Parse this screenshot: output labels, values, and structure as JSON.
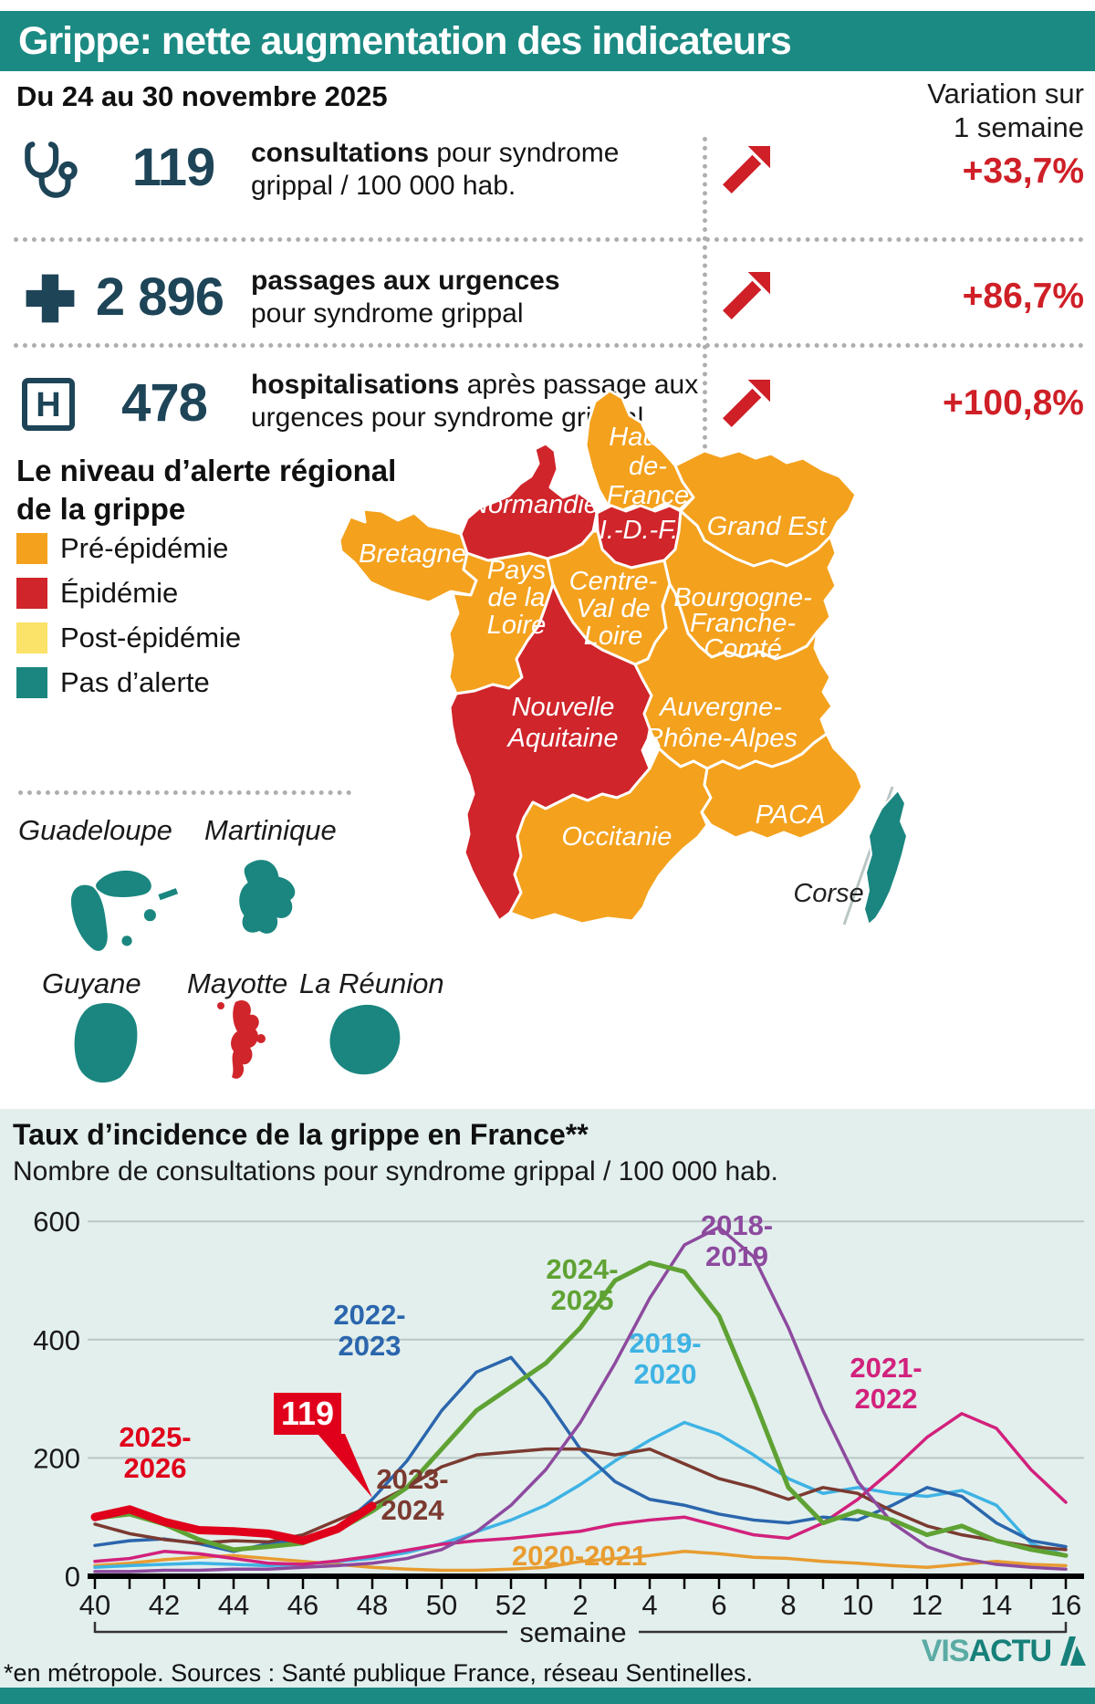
{
  "title": "Grippe: nette augmentation des indicateurs",
  "period": "Du 24 au 30 novembre 2025",
  "variation_header": "Variation sur\n1 semaine",
  "stats": [
    {
      "icon": "stethoscope-icon",
      "value": "119",
      "bold": "consultations",
      "rest": " pour syndrome grippal / 100 000 hab.",
      "variation": "+33,7%"
    },
    {
      "icon": "medical-cross-icon",
      "value": "2 896",
      "bold": "passages aux urgences",
      "rest": " pour syndrome grippal",
      "variation": "+86,7%"
    },
    {
      "icon": "hospital-icon",
      "value": "478",
      "bold": "hospitalisations",
      "rest": " après passage aux urgences pour syndrome grippal",
      "variation": "+100,8%"
    }
  ],
  "map": {
    "heading": "Le niveau d’alerte régional\nde la grippe",
    "status_colors": {
      "pre": "#f4a11d",
      "epidemie": "#d0252b",
      "post": "#fbe268",
      "none": "#1a867f"
    },
    "legend": [
      {
        "label": "Pré-épidémie",
        "status": "pre",
        "color": "#f4a11d"
      },
      {
        "label": "Épidémie",
        "status": "epidemie",
        "color": "#d0252b"
      },
      {
        "label": "Post-épidémie",
        "status": "post",
        "color": "#fbe268"
      },
      {
        "label": "Pas d’alerte",
        "status": "none",
        "color": "#1a867f"
      }
    ],
    "regions": [
      {
        "id": "hauts-de-france",
        "label": "Hauts-\nde-\nFrance",
        "status": "pre"
      },
      {
        "id": "normandie",
        "label": "Normandie",
        "status": "epidemie"
      },
      {
        "id": "ile-de-france",
        "label": "I.-D.-F.",
        "status": "epidemie"
      },
      {
        "id": "grand-est",
        "label": "Grand Est",
        "status": "pre"
      },
      {
        "id": "bretagne",
        "label": "Bretagne",
        "status": "pre"
      },
      {
        "id": "pays-de-la-loire",
        "label": "Pays\nde la\nLoire",
        "status": "pre"
      },
      {
        "id": "centre-val-de-loire",
        "label": "Centre-\nVal de\nLoire",
        "status": "pre"
      },
      {
        "id": "bourgogne-franche-comte",
        "label": "Bourgogne-\nFranche-\nComté",
        "status": "pre"
      },
      {
        "id": "nouvelle-aquitaine",
        "label": "Nouvelle\nAquitaine",
        "status": "epidemie"
      },
      {
        "id": "auvergne-rhone-alpes",
        "label": "Auvergne-\nRhône-Alpes",
        "status": "pre"
      },
      {
        "id": "occitanie",
        "label": "Occitanie",
        "status": "pre"
      },
      {
        "id": "paca",
        "label": "PACA",
        "status": "pre"
      },
      {
        "id": "corse",
        "label": "Corse",
        "status": "none",
        "label_dark": true
      }
    ],
    "overseas": [
      {
        "id": "guadeloupe",
        "name": "Guadeloupe",
        "status": "none"
      },
      {
        "id": "martinique",
        "name": "Martinique",
        "status": "none"
      },
      {
        "id": "guyane",
        "name": "Guyane",
        "status": "none"
      },
      {
        "id": "mayotte",
        "name": "Mayotte",
        "status": "epidemie"
      },
      {
        "id": "reunion",
        "name": "La Réunion",
        "status": "none"
      }
    ]
  },
  "chart_data": {
    "type": "line",
    "title": "Taux d’incidence de la grippe en France**",
    "subtitle": "Nombre de consultations pour syndrome grippal / 100 000 hab.",
    "xlabel": "semaine",
    "ylim": [
      0,
      600
    ],
    "y_ticks": [
      600,
      400,
      200,
      0
    ],
    "x_tick_labels": [
      "40",
      "42",
      "44",
      "46",
      "48",
      "50",
      "52",
      "2",
      "4",
      "6",
      "8",
      "10",
      "12",
      "14",
      "16"
    ],
    "weeks": [
      "40",
      "41",
      "42",
      "43",
      "44",
      "45",
      "46",
      "47",
      "48",
      "49",
      "50",
      "51",
      "52",
      "1",
      "2",
      "3",
      "4",
      "5",
      "6",
      "7",
      "8",
      "9",
      "10",
      "11",
      "12",
      "13",
      "14",
      "15",
      "16"
    ],
    "callout": {
      "text": "119",
      "week": "48"
    },
    "series": [
      {
        "name": "2020-2021",
        "label": "2020-2021",
        "color": "#e89c30",
        "width": 3.5,
        "values": [
          18,
          22,
          28,
          32,
          35,
          30,
          25,
          20,
          15,
          12,
          10,
          10,
          12,
          15,
          25,
          30,
          35,
          42,
          38,
          32,
          30,
          25,
          22,
          18,
          15,
          20,
          25,
          20,
          18
        ]
      },
      {
        "name": "2019-2020",
        "label": "2019-\n2020",
        "color": "#3eb3e4",
        "width": 3.5,
        "values": [
          15,
          18,
          20,
          22,
          20,
          18,
          20,
          25,
          30,
          40,
          55,
          75,
          95,
          120,
          155,
          195,
          230,
          260,
          240,
          205,
          165,
          140,
          150,
          140,
          135,
          145,
          120,
          55,
          35
        ]
      },
      {
        "name": "2021-2022",
        "label": "2021-\n2022",
        "color": "#d2217c",
        "width": 3.5,
        "values": [
          25,
          30,
          42,
          38,
          30,
          22,
          20,
          26,
          34,
          44,
          54,
          60,
          64,
          70,
          76,
          88,
          95,
          100,
          85,
          70,
          64,
          90,
          130,
          180,
          235,
          275,
          250,
          180,
          125
        ]
      },
      {
        "name": "2022-2023",
        "label": "2022-\n2023",
        "color": "#2b66ad",
        "width": 3.5,
        "values": [
          52,
          60,
          63,
          55,
          42,
          55,
          62,
          80,
          130,
          195,
          280,
          345,
          370,
          300,
          215,
          160,
          130,
          120,
          105,
          95,
          90,
          100,
          95,
          120,
          150,
          135,
          90,
          60,
          50
        ]
      },
      {
        "name": "2023-2024",
        "label": "2023-\n2024",
        "color": "#7b3a30",
        "width": 3.5,
        "values": [
          88,
          72,
          62,
          56,
          60,
          58,
          70,
          95,
          120,
          150,
          185,
          205,
          210,
          215,
          215,
          205,
          215,
          190,
          165,
          150,
          130,
          150,
          140,
          110,
          85,
          70,
          60,
          50,
          45
        ]
      },
      {
        "name": "2018-2019",
        "label": "2018-\n2019",
        "color": "#8d4a9e",
        "width": 3.5,
        "values": [
          8,
          8,
          10,
          10,
          12,
          12,
          15,
          18,
          22,
          30,
          45,
          75,
          120,
          180,
          260,
          360,
          470,
          560,
          590,
          540,
          420,
          280,
          160,
          90,
          50,
          30,
          20,
          15,
          12
        ]
      },
      {
        "name": "2024-2025",
        "label": "2024-\n2025",
        "color": "#5fa233",
        "width": 5,
        "values": [
          98,
          105,
          88,
          62,
          45,
          50,
          56,
          78,
          110,
          150,
          215,
          280,
          320,
          360,
          420,
          500,
          530,
          515,
          440,
          300,
          150,
          90,
          110,
          95,
          70,
          85,
          60,
          45,
          35
        ]
      },
      {
        "name": "2025-2026",
        "label": "2025-\n2026",
        "color": "#e0001b",
        "width": 9,
        "values": [
          100,
          113,
          92,
          78,
          76,
          72,
          60,
          80,
          119
        ]
      }
    ],
    "footnote": "*en métropole. Sources : Santé publique France, réseau Sentinelles.",
    "logo": {
      "part1": "VIS",
      "part2": "ACTU"
    }
  }
}
